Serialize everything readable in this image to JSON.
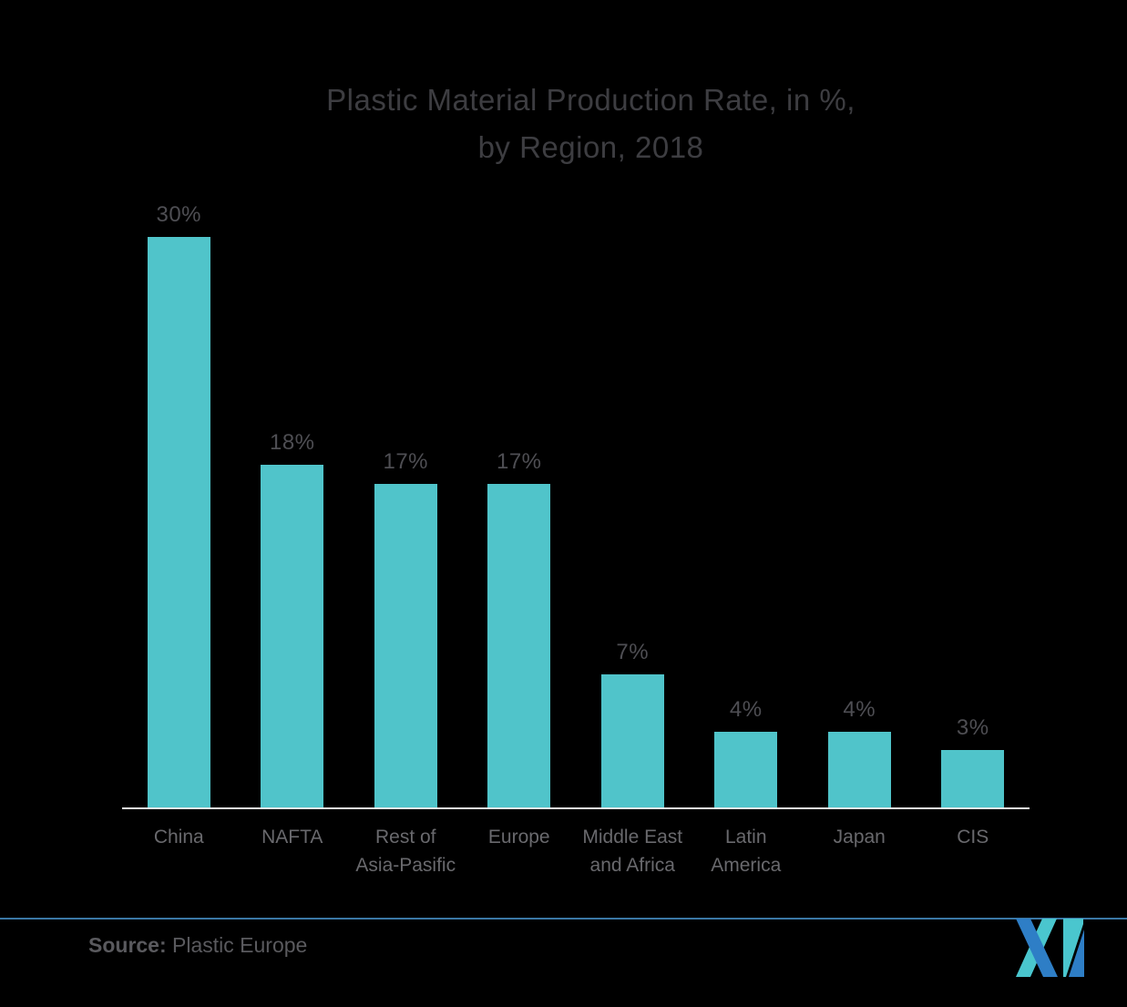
{
  "page": {
    "background": "#000000"
  },
  "title": {
    "text": "Plastic Material Production Rate, in %,\nby Region, 2018"
  },
  "chart_data": {
    "type": "bar",
    "title": "Plastic Material Production Rate, in %, by Region, 2018",
    "categories": [
      "China",
      "NAFTA",
      "Rest of\nAsia-Pasific",
      "Europe",
      "Middle East\nand Africa",
      "Latin\nAmerica",
      "Japan",
      "CIS"
    ],
    "values": [
      30,
      18,
      17,
      17,
      7,
      4,
      4,
      3
    ],
    "value_labels": [
      "30%",
      "18%",
      "17%",
      "17%",
      "7%",
      "4%",
      "4%",
      "3%"
    ],
    "xlabel": "",
    "ylabel": "",
    "ylim": [
      0,
      30
    ],
    "grid": false,
    "legend": "none",
    "bar_color": "#50C4CA",
    "axis_line_color": "#E9E9E9"
  },
  "source": {
    "label": "Source:",
    "text": " Plastic Europe"
  },
  "colors": {
    "title_text": "#3D3D41",
    "value_label_text": "#4E4E53",
    "category_label_text": "#69696D",
    "divider_blue": "#3A77A5"
  },
  "logo": {
    "name": "mordor-intelligence-logo",
    "blue": "#2E7EC6",
    "teal": "#4AC6CE"
  }
}
